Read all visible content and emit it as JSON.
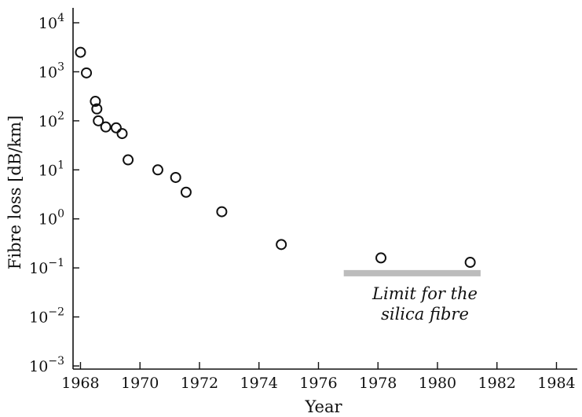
{
  "chart_data": {
    "type": "scatter",
    "title": "",
    "xlabel": "Year",
    "ylabel": "Fibre loss [dB/km]",
    "y_scale": "log",
    "xlim": [
      1967.75,
      1984.7
    ],
    "ylim": [
      0.001,
      10000
    ],
    "x_ticks": [
      1968,
      1970,
      1972,
      1974,
      1976,
      1978,
      1980,
      1982,
      1984
    ],
    "x_tick_labels": [
      "1968",
      "1970",
      "1972",
      "1974",
      "1976",
      "1978",
      "1980",
      "1982",
      "1984"
    ],
    "y_ticks": [
      {
        "value": 10000,
        "base": "10",
        "exp": "4"
      },
      {
        "value": 1000,
        "base": "10",
        "exp": "3"
      },
      {
        "value": 100,
        "base": "10",
        "exp": "2"
      },
      {
        "value": 10,
        "base": "10",
        "exp": "1"
      },
      {
        "value": 1,
        "base": "10",
        "exp": "0"
      },
      {
        "value": 0.1,
        "base": "10",
        "exp": "−1"
      },
      {
        "value": 0.01,
        "base": "10",
        "exp": "−2"
      },
      {
        "value": 0.001,
        "base": "10",
        "exp": "−3"
      }
    ],
    "points": [
      {
        "x": 1968.0,
        "y": 2500
      },
      {
        "x": 1968.2,
        "y": 950
      },
      {
        "x": 1968.5,
        "y": 250
      },
      {
        "x": 1968.55,
        "y": 175
      },
      {
        "x": 1968.6,
        "y": 100
      },
      {
        "x": 1968.85,
        "y": 75
      },
      {
        "x": 1969.2,
        "y": 72
      },
      {
        "x": 1969.4,
        "y": 55
      },
      {
        "x": 1969.6,
        "y": 16
      },
      {
        "x": 1970.6,
        "y": 10
      },
      {
        "x": 1971.2,
        "y": 7
      },
      {
        "x": 1971.55,
        "y": 3.5
      },
      {
        "x": 1972.75,
        "y": 1.4
      },
      {
        "x": 1974.75,
        "y": 0.3
      },
      {
        "x": 1978.1,
        "y": 0.16
      },
      {
        "x": 1981.1,
        "y": 0.13
      }
    ],
    "limit_line": {
      "x_start": 1976.85,
      "x_end": 1981.45,
      "y": 0.078,
      "color": "#bcbcbc"
    },
    "annotation": {
      "lines": [
        "Limit for the",
        "silica fibre"
      ]
    }
  }
}
